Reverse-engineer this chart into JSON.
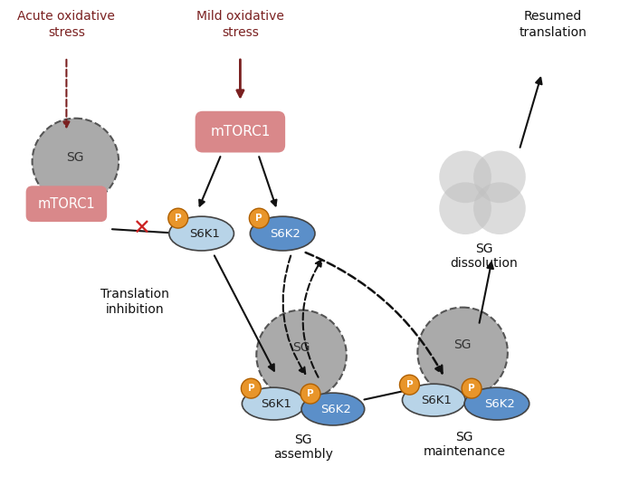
{
  "bg_color": "#ffffff",
  "mtorc1_color": "#d9888a",
  "sg_gray": "#aaaaaa",
  "s6k1_light_blue": "#b8d4e8",
  "s6k2_blue": "#5b8fc9",
  "phospho_orange": "#e8952a",
  "arrow_color": "#111111",
  "red_x_color": "#cc2222",
  "dark_red": "#7a2020",
  "labels": {
    "acute_stress": "Acute oxidative\nstress",
    "mild_stress": "Mild oxidative\nstress",
    "mtorc1": "mTORC1",
    "sg": "SG",
    "s6k1": "S6K1",
    "s6k2": "S6K2",
    "translation_inhibition": "Translation\ninhibition",
    "sg_assembly": "SG\nassembly",
    "sg_maintenance": "SG\nmaintenance",
    "sg_dissolution": "SG\ndissolution",
    "resumed_translation": "Resumed\ntranslation"
  }
}
